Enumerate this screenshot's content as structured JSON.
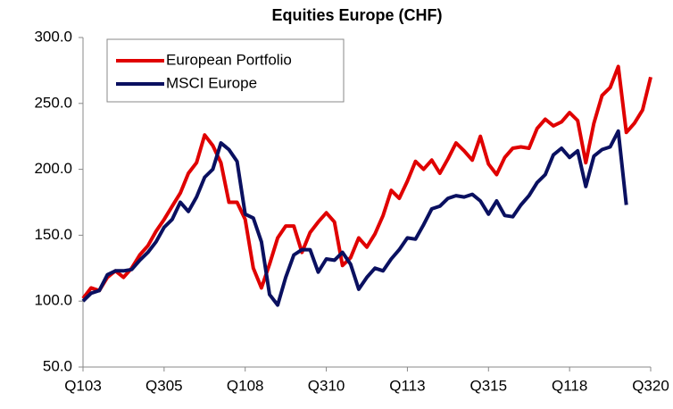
{
  "chart_data": {
    "type": "line",
    "title": "Equities Europe (CHF)",
    "categories": [
      "Q103",
      null,
      null,
      null,
      null,
      null,
      null,
      null,
      null,
      null,
      "Q305",
      null,
      null,
      null,
      null,
      null,
      null,
      null,
      null,
      null,
      "Q108",
      null,
      null,
      null,
      null,
      null,
      null,
      null,
      null,
      null,
      "Q310",
      null,
      null,
      null,
      null,
      null,
      null,
      null,
      null,
      null,
      "Q113",
      null,
      null,
      null,
      null,
      null,
      null,
      null,
      null,
      null,
      "Q315",
      null,
      null,
      null,
      null,
      null,
      null,
      null,
      null,
      null,
      "Q118",
      null,
      null,
      null,
      null,
      null,
      null,
      null,
      null,
      null,
      "Q320"
    ],
    "series": [
      {
        "name": "European Portfolio",
        "color": "#e00000",
        "values": [
          102,
          110,
          108,
          118,
          123,
          118,
          125,
          135,
          142,
          153,
          162,
          172,
          182,
          197,
          205,
          226,
          218,
          205,
          175,
          175,
          162,
          125,
          110,
          128,
          148,
          157,
          157,
          137,
          152,
          160,
          167,
          160,
          127,
          133,
          148,
          141,
          151,
          165,
          184,
          178,
          191,
          206,
          200,
          207,
          197,
          208,
          220,
          214,
          207,
          225,
          204,
          196,
          209,
          216,
          217,
          216,
          231,
          238,
          233,
          236,
          243,
          237,
          205,
          235,
          256,
          262,
          278,
          228,
          235,
          245,
          270
        ]
      },
      {
        "name": "MSCI Europe",
        "color": "#0a1060",
        "values": [
          100,
          106,
          108,
          120,
          123,
          123,
          124,
          131,
          137,
          145,
          156,
          162,
          175,
          168,
          179,
          194,
          200,
          220,
          215,
          206,
          166,
          163,
          145,
          105,
          97,
          118,
          135,
          139,
          139,
          122,
          132,
          131,
          137,
          128,
          109,
          118,
          125,
          123,
          132,
          139,
          148,
          147,
          158,
          170,
          172,
          178,
          180,
          179,
          181,
          176,
          166,
          176,
          165,
          164,
          173,
          180,
          190,
          196,
          211,
          216,
          209,
          214,
          187,
          210,
          215,
          217,
          229,
          173,
          null,
          null,
          null
        ]
      }
    ],
    "ylim": [
      50,
      300
    ],
    "yticks": [
      {
        "value": 50,
        "label": "50.0"
      },
      {
        "value": 100,
        "label": "100.0"
      },
      {
        "value": 150,
        "label": "150.0"
      },
      {
        "value": 200,
        "label": "200.0"
      },
      {
        "value": 250,
        "label": "250.0"
      },
      {
        "value": 300,
        "label": "300.0"
      }
    ],
    "grid": false,
    "legend": "upper left"
  }
}
